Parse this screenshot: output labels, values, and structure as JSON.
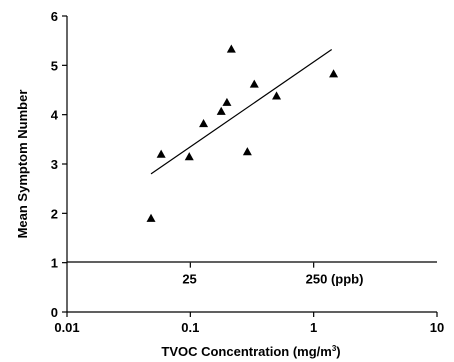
{
  "chart_data": {
    "type": "scatter",
    "x_scale": "log",
    "xlim": [
      0.01,
      10
    ],
    "ylim": [
      0,
      6
    ],
    "x_ticks": [
      0.01,
      0.1,
      1,
      10
    ],
    "x_tick_labels": [
      "0.01",
      "0.1",
      "1",
      "10"
    ],
    "y_ticks": [
      0,
      1,
      2,
      3,
      4,
      5,
      6
    ],
    "y_tick_labels": [
      "0",
      "1",
      "2",
      "3",
      "4",
      "5",
      "6"
    ],
    "xlabel": "TVOC Concentration (mg/m",
    "xlabel_superscript": "3",
    "xlabel_suffix": ")",
    "ylabel": "Mean Symptom Number",
    "ppb_reference_line_y": 1,
    "ppb_labels": [
      "25",
      "250 (ppb)"
    ],
    "ppb_label_x": [
      0.1,
      1
    ],
    "grid": false,
    "marker": "triangle",
    "points": [
      {
        "x": 0.048,
        "y": 1.9
      },
      {
        "x": 0.058,
        "y": 3.2
      },
      {
        "x": 0.098,
        "y": 3.15
      },
      {
        "x": 0.128,
        "y": 3.82
      },
      {
        "x": 0.178,
        "y": 4.07
      },
      {
        "x": 0.198,
        "y": 4.25
      },
      {
        "x": 0.215,
        "y": 5.33
      },
      {
        "x": 0.29,
        "y": 3.25
      },
      {
        "x": 0.33,
        "y": 4.62
      },
      {
        "x": 0.5,
        "y": 4.38
      },
      {
        "x": 1.45,
        "y": 4.83
      }
    ],
    "trendline": [
      {
        "x": 0.048,
        "y": 2.8
      },
      {
        "x": 1.4,
        "y": 5.32
      }
    ]
  }
}
